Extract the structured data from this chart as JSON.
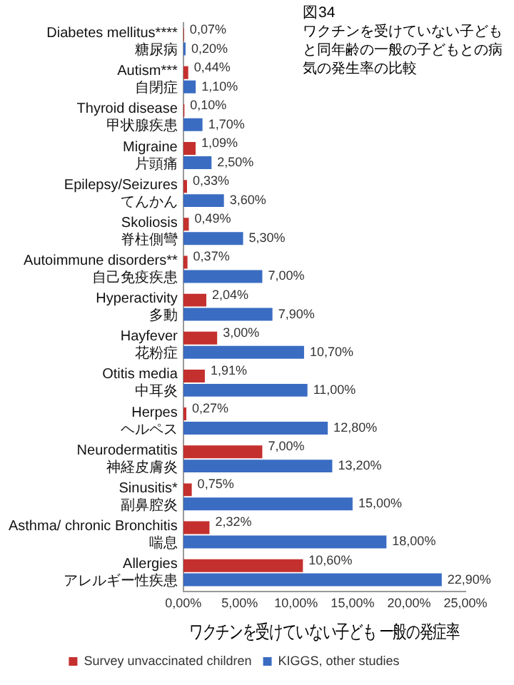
{
  "chart_data": {
    "type": "bar",
    "orientation": "horizontal",
    "title": "図34",
    "subtitle": "ワクチンを受けていない子どもと同年齢の一般の子どもとの病気の発生率の比較",
    "xlabel": "ワクチンを受けていない子ども 一般の発症率",
    "categories": [
      "Diabetes mellitus****\n糖尿病",
      "Autism***\n自閉症",
      "Thyroid disease\n甲状腺疾患",
      "Migraine\n片頭痛",
      "Epilepsy/Seizures\nてんかん",
      "Skoliosis\n脊柱側彎",
      "Autoimmune disorders**\n自己免疫疾患",
      "Hyperactivity\n多動",
      "Hayfever\n花粉症",
      "Otitis media\n中耳炎",
      "Herpes\nヘルペス",
      "Neurodermatitis\n神経皮膚炎",
      "Sinusitis*\n副鼻腔炎",
      "Asthma/ chronic Bronchitis\n喘息",
      "Allergies\nアレルギー性疾患"
    ],
    "series": [
      {
        "name": "Survey unvaccinated children",
        "color": "#c4302e",
        "values": [
          0.07,
          0.44,
          0.1,
          1.09,
          0.33,
          0.49,
          0.37,
          2.04,
          3.0,
          1.91,
          0.27,
          7.0,
          0.75,
          2.32,
          10.6
        ],
        "value_labels": [
          "0,07%",
          "0,44%",
          "0,10%",
          "1,09%",
          "0,33%",
          "0,49%",
          "0,37%",
          "2,04%",
          "3,00%",
          "1,91%",
          "0,27%",
          "7,00%",
          "0,75%",
          "2,32%",
          "10,60%"
        ]
      },
      {
        "name": "KIGGS, other studies",
        "color": "#3a6cc2",
        "values": [
          0.2,
          1.1,
          1.7,
          2.5,
          3.6,
          5.3,
          7.0,
          7.9,
          10.7,
          11.0,
          12.8,
          13.2,
          15.0,
          18.0,
          22.9
        ],
        "value_labels": [
          "0,20%",
          "1,10%",
          "1,70%",
          "2,50%",
          "3,60%",
          "5,30%",
          "7,00%",
          "7,90%",
          "10,70%",
          "11,00%",
          "12,80%",
          "13,20%",
          "15,00%",
          "18,00%",
          "22,90%"
        ]
      }
    ],
    "xlim": [
      0,
      25
    ],
    "xticks": [
      {
        "value": 0,
        "label": "0,00%"
      },
      {
        "value": 5,
        "label": "5,00%"
      },
      {
        "value": 10,
        "label": "10,00%"
      },
      {
        "value": 15,
        "label": "15,00%"
      },
      {
        "value": 20,
        "label": "20,00%"
      },
      {
        "value": 25,
        "label": "25,00%"
      }
    ],
    "grid": false,
    "legend": "bottom"
  }
}
